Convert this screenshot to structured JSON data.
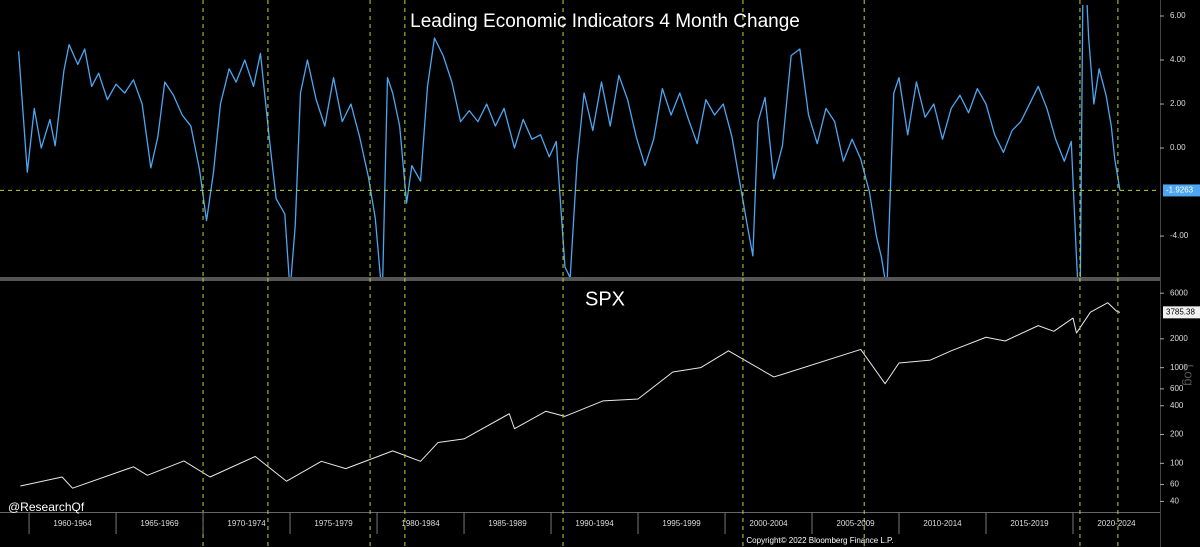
{
  "watermark": "@ResearchQf",
  "copyright": "Copyright© 2022 Bloomberg Finance L.P.",
  "chart_data": [
    {
      "type": "line",
      "title": "Leading Economic Indicators 4 Month Change",
      "color": "#4ca6f2",
      "vline_color": "#b6d63a",
      "last_value_line": true,
      "xlim": [
        1958.33,
        2025
      ],
      "ylim": [
        -5.86,
        6.5
      ],
      "yticks": [
        {
          "value": 6,
          "label": "6.00"
        },
        {
          "value": 4,
          "label": "4.00"
        },
        {
          "value": 2,
          "label": "2.00"
        },
        {
          "value": 0,
          "label": "0.00"
        },
        {
          "value": -4,
          "label": "-4.00"
        }
      ],
      "vlines": [
        1970.0,
        1973.73,
        1979.6,
        1981.6,
        1990.69,
        2001.03,
        2008.0,
        2020.4,
        2022.58
      ],
      "x": [
        1959.4,
        1959.9,
        1960.3,
        1960.7,
        1961.2,
        1961.5,
        1962.0,
        1962.3,
        1962.8,
        1963.2,
        1963.6,
        1964.0,
        1964.5,
        1965.0,
        1965.5,
        1966.0,
        1966.5,
        1967.0,
        1967.4,
        1967.8,
        1968.3,
        1968.8,
        1969.3,
        1969.8,
        1970.2,
        1970.6,
        1971.0,
        1971.5,
        1971.9,
        1972.4,
        1972.9,
        1973.3,
        1973.8,
        1974.2,
        1974.7,
        1975.0,
        1975.3,
        1975.6,
        1976.0,
        1976.5,
        1977.0,
        1977.5,
        1978.0,
        1978.5,
        1979.0,
        1979.5,
        1979.9,
        1980.3,
        1980.6,
        1980.9,
        1981.3,
        1981.7,
        1982.0,
        1982.5,
        1982.9,
        1983.3,
        1983.8,
        1984.3,
        1984.8,
        1985.3,
        1985.8,
        1986.3,
        1986.8,
        1987.3,
        1987.9,
        1988.4,
        1988.9,
        1989.4,
        1989.9,
        1990.3,
        1990.8,
        1991.1,
        1991.5,
        1991.9,
        1992.4,
        1992.9,
        1993.4,
        1993.9,
        1994.4,
        1994.9,
        1995.4,
        1995.9,
        1996.4,
        1996.9,
        1997.4,
        1997.9,
        1998.4,
        1998.9,
        1999.4,
        1999.9,
        2000.4,
        2000.9,
        2001.3,
        2001.6,
        2001.9,
        2002.3,
        2002.8,
        2003.3,
        2003.8,
        2004.3,
        2004.8,
        2005.3,
        2005.8,
        2006.3,
        2006.8,
        2007.3,
        2007.8,
        2008.3,
        2008.7,
        2009.0,
        2009.3,
        2009.7,
        2010.0,
        2010.5,
        2011.0,
        2011.5,
        2012.0,
        2012.5,
        2013.0,
        2013.5,
        2014.0,
        2014.5,
        2015.0,
        2015.5,
        2016.0,
        2016.5,
        2017.0,
        2017.5,
        2018.0,
        2018.5,
        2019.0,
        2019.5,
        2019.9,
        2020.2,
        2020.4,
        2020.6,
        2020.9,
        2021.2,
        2021.5,
        2021.9,
        2022.2,
        2022.4,
        2022.7
      ],
      "values": [
        4.4,
        -1.1,
        1.8,
        0,
        1.3,
        0.1,
        3.5,
        4.7,
        3.8,
        4.5,
        2.8,
        3.4,
        2.2,
        2.9,
        2.5,
        3.1,
        2.0,
        -0.9,
        0.5,
        3.0,
        2.4,
        1.5,
        1.0,
        -1.0,
        -3.3,
        -1.1,
        2.0,
        3.6,
        3.0,
        4.0,
        2.8,
        4.3,
        0.5,
        -2.3,
        -3.0,
        -6.5,
        -3.5,
        2.5,
        4.0,
        2.2,
        1.0,
        3.2,
        1.2,
        2.0,
        0.5,
        -1.3,
        -3.2,
        -6.8,
        3.2,
        2.5,
        1.0,
        -2.5,
        -0.8,
        -1.5,
        2.8,
        5.0,
        4.2,
        3.0,
        1.2,
        1.7,
        1.2,
        2.0,
        1.0,
        1.8,
        0.0,
        1.3,
        0.4,
        0.6,
        -0.4,
        0.3,
        -5.4,
        -5.9,
        -0.6,
        2.5,
        0.8,
        3.0,
        1.0,
        3.3,
        2.2,
        0.5,
        -0.8,
        0.4,
        2.7,
        1.5,
        2.5,
        1.3,
        0.2,
        2.2,
        1.5,
        2.0,
        0.5,
        -1.8,
        -3.6,
        -4.9,
        1.2,
        2.3,
        -1.4,
        0.1,
        4.2,
        4.5,
        1.5,
        0.2,
        1.8,
        1.2,
        -0.6,
        0.4,
        -0.5,
        -2.0,
        -4.0,
        -5.0,
        -6.5,
        2.5,
        3.2,
        0.6,
        3.0,
        1.4,
        2.0,
        0.4,
        1.8,
        2.4,
        1.6,
        2.7,
        2.0,
        0.6,
        -0.2,
        0.8,
        1.2,
        2.0,
        2.8,
        1.8,
        0.4,
        -0.6,
        0.3,
        -5.0,
        -8.0,
        10.0,
        5.0,
        2.0,
        3.6,
        2.4,
        1.0,
        -0.5,
        -1.9263
      ]
    },
    {
      "type": "line",
      "title": "SPX",
      "color": "#e8e8e8",
      "vline_color": "#b6d63a",
      "log_scale": true,
      "scale_label": "Log",
      "xlim": [
        1958.33,
        2025
      ],
      "ylim": [
        31,
        8050
      ],
      "yticks": [
        6000,
        2000,
        1000,
        600,
        400,
        200,
        100,
        60,
        40
      ],
      "vlines": [
        1970.0,
        1973.73,
        1979.6,
        1981.6,
        1990.69,
        2001.03,
        2008.0,
        2020.4,
        2022.58
      ],
      "xticks": [
        {
          "value": 1960,
          "label": "1960-1964"
        },
        {
          "value": 1965,
          "label": "1965-1969"
        },
        {
          "value": 1970,
          "label": "1970-1974"
        },
        {
          "value": 1975,
          "label": "1975-1979"
        },
        {
          "value": 1980,
          "label": "1980-1984"
        },
        {
          "value": 1985,
          "label": "1985-1989"
        },
        {
          "value": 1990,
          "label": "1990-1994"
        },
        {
          "value": 1995,
          "label": "1995-1999"
        },
        {
          "value": 2000,
          "label": "2000-2004"
        },
        {
          "value": 2005,
          "label": "2005-2009"
        },
        {
          "value": 2010,
          "label": "2010-2014"
        },
        {
          "value": 2015,
          "label": "2015-2019"
        },
        {
          "value": 2020,
          "label": "2020-2024"
        }
      ],
      "x": [
        1959.5,
        1961.9,
        1962.5,
        1966.0,
        1966.8,
        1968.9,
        1970.4,
        1973.0,
        1974.8,
        1976.8,
        1978.2,
        1980.9,
        1982.5,
        1983.5,
        1985.0,
        1987.6,
        1987.9,
        1989.7,
        1990.8,
        1993.0,
        1995.0,
        1997.0,
        1998.6,
        2000.2,
        2002.8,
        2003.2,
        2007.8,
        2009.2,
        2010.0,
        2011.8,
        2013.0,
        2015.0,
        2016.1,
        2018.0,
        2018.9,
        2020.0,
        2020.2,
        2021.0,
        2022.0,
        2022.5,
        2022.7
      ],
      "values": [
        58,
        72,
        55,
        92,
        75,
        106,
        72,
        118,
        65,
        105,
        88,
        135,
        105,
        165,
        180,
        330,
        230,
        350,
        310,
        450,
        470,
        900,
        1000,
        1500,
        800,
        840,
        1550,
        680,
        1120,
        1200,
        1500,
        2080,
        1900,
        2750,
        2400,
        3300,
        2300,
        3800,
        4770,
        3900,
        3785.38
      ]
    }
  ]
}
